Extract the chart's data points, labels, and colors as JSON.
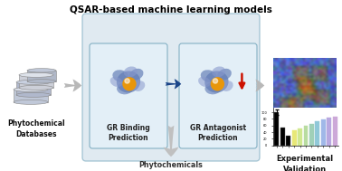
{
  "title": "QSAR-based machine learning models",
  "title_fontsize": 7.5,
  "title_fontweight": "bold",
  "fig_bg": "#ffffff",
  "main_box_color": "#ccdde8",
  "main_box_edge": "#7aaabf",
  "inner_box_color": "#e4f0f8",
  "inner_box_edge": "#7aaabf",
  "label_gr_binding": "GR Binding\nPrediction",
  "label_gr_antagonist": "GR Antagonist\nPrediction",
  "label_phytochem_db": "Phytochemical\nDatabases",
  "label_phytochem_antagonizing": "Phytochemicals\nAntagonizing GR",
  "label_experimental": "Experimental\nValidation",
  "protein_color1": "#6680b8",
  "protein_color2": "#8899cc",
  "ligand_color": "#e8960a",
  "arrow_gray": "#aaaaaa",
  "dark_arrow_color": "#1a4488",
  "red_arrow_color": "#cc1100",
  "text_fontsize": 5.5,
  "text_fontweight": "bold",
  "bar_vals": [
    100,
    55,
    30,
    45,
    52,
    58,
    65,
    72,
    78,
    85,
    88
  ],
  "bar_colors": [
    "black",
    "black",
    "black",
    "#e8e878",
    "#d0e890",
    "#b8dca0",
    "#a0d0b8",
    "#90c8d8",
    "#a0b8e8",
    "#b8a8e0",
    "#cca8d8"
  ]
}
